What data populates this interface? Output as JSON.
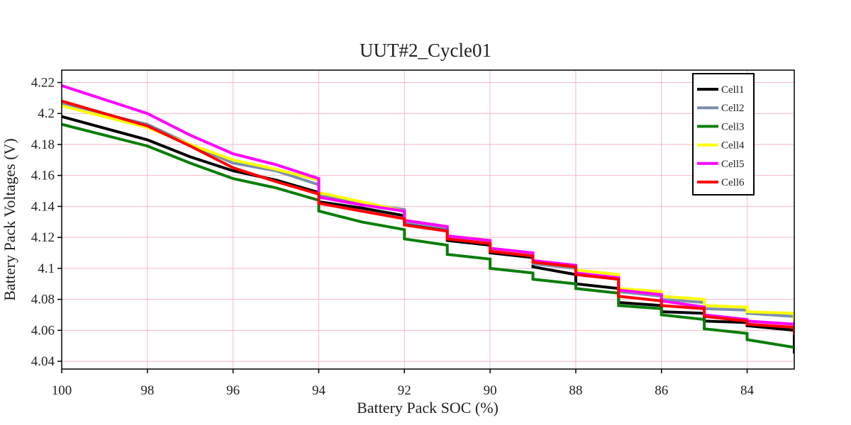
{
  "chart_data": {
    "type": "line",
    "title": "UUT#2_Cycle01",
    "xlabel": "Battery Pack SOC (%)",
    "ylabel": "Battery Pack Voltages (V)",
    "xlim": [
      100,
      82.9
    ],
    "ylim": [
      4.035,
      4.228
    ],
    "x_reversed": true,
    "x_ticks": [
      100,
      98,
      96,
      94,
      92,
      90,
      88,
      86,
      84
    ],
    "x_tick_labels": [
      "100",
      "98",
      "96",
      "94",
      "92",
      "90",
      "88",
      "86",
      "84"
    ],
    "y_ticks": [
      4.04,
      4.06,
      4.08,
      4.1,
      4.12,
      4.14,
      4.16,
      4.18,
      4.2,
      4.22
    ],
    "y_tick_labels": [
      "4.04",
      "4.06",
      "4.08",
      "4.1",
      "4.12",
      "4.14",
      "4.16",
      "4.18",
      "4.2",
      "4.22"
    ],
    "grid": true,
    "grid_color": "#f4b6c6",
    "legend_position": "top-right",
    "series": [
      {
        "name": "Cell1",
        "color": "#000000",
        "x": [
          100,
          98,
          97,
          96,
          95,
          94,
          94,
          93,
          92,
          92,
          91,
          91,
          90,
          90,
          89,
          89,
          88,
          88,
          87,
          87,
          86,
          86,
          85,
          85,
          84,
          84,
          82.9,
          82.9
        ],
        "y": [
          4.198,
          4.183,
          4.172,
          4.163,
          4.157,
          4.149,
          4.143,
          4.139,
          4.134,
          4.129,
          4.125,
          4.118,
          4.115,
          4.11,
          4.107,
          4.101,
          4.096,
          4.09,
          4.087,
          4.078,
          4.076,
          4.072,
          4.071,
          4.066,
          4.065,
          4.063,
          4.06,
          4.045
        ]
      },
      {
        "name": "Cell2",
        "color": "#7a90b0",
        "x": [
          100,
          98,
          97,
          96,
          95,
          94,
          94,
          93,
          92,
          92,
          91,
          91,
          90,
          90,
          89,
          89,
          88,
          88,
          87,
          87,
          86,
          86,
          85,
          85,
          84,
          84,
          82.9,
          82.9
        ],
        "y": [
          4.206,
          4.193,
          4.18,
          4.168,
          4.163,
          4.154,
          4.147,
          4.142,
          4.138,
          4.13,
          4.126,
          4.12,
          4.117,
          4.111,
          4.109,
          4.103,
          4.1,
          4.097,
          4.093,
          4.085,
          4.082,
          4.08,
          4.078,
          4.074,
          4.073,
          4.071,
          4.069,
          4.06
        ]
      },
      {
        "name": "Cell3",
        "color": "#0b7d0b",
        "x": [
          100,
          98,
          97,
          96,
          95,
          94,
          94,
          93,
          92,
          92,
          91,
          91,
          90,
          90,
          89,
          89,
          88,
          88,
          87,
          87,
          86,
          86,
          85,
          85,
          84,
          84,
          82.9
        ],
        "y": [
          4.193,
          4.179,
          4.168,
          4.158,
          4.152,
          4.144,
          4.137,
          4.13,
          4.125,
          4.119,
          4.115,
          4.109,
          4.106,
          4.1,
          4.097,
          4.093,
          4.09,
          4.087,
          4.084,
          4.076,
          4.074,
          4.07,
          4.067,
          4.061,
          4.058,
          4.054,
          4.049
        ]
      },
      {
        "name": "Cell4",
        "color": "#ffff00",
        "x": [
          100,
          98,
          97,
          96,
          95,
          94,
          94,
          93,
          92,
          92,
          91,
          91,
          90,
          90,
          89,
          89,
          88,
          88,
          87,
          87,
          86,
          86,
          85,
          85,
          84,
          84,
          82.9,
          82.9
        ],
        "y": [
          4.205,
          4.191,
          4.18,
          4.17,
          4.164,
          4.157,
          4.149,
          4.143,
          4.137,
          4.131,
          4.127,
          4.121,
          4.118,
          4.112,
          4.11,
          4.104,
          4.101,
          4.099,
          4.096,
          4.087,
          4.085,
          4.082,
          4.08,
          4.076,
          4.075,
          4.072,
          4.071,
          4.066
        ]
      },
      {
        "name": "Cell5",
        "color": "#ff00ff",
        "x": [
          100,
          98,
          97,
          96,
          95,
          94,
          94,
          93,
          92,
          92,
          91,
          91,
          90,
          90,
          89,
          89,
          88,
          88,
          87,
          87,
          86,
          86,
          85,
          85,
          84,
          84,
          82.9,
          82.9
        ],
        "y": [
          4.218,
          4.2,
          4.186,
          4.174,
          4.167,
          4.158,
          4.146,
          4.141,
          4.137,
          4.131,
          4.127,
          4.121,
          4.118,
          4.113,
          4.11,
          4.105,
          4.102,
          4.097,
          4.094,
          4.086,
          4.083,
          4.079,
          4.075,
          4.07,
          4.067,
          4.066,
          4.064,
          4.06
        ]
      },
      {
        "name": "Cell6",
        "color": "#ff0000",
        "x": [
          100,
          98,
          97,
          96,
          95,
          94,
          94,
          93,
          92,
          92,
          91,
          91,
          90,
          90,
          89,
          89,
          88,
          88,
          87,
          87,
          86,
          86,
          85,
          85,
          84,
          84,
          82.9,
          82.9
        ],
        "y": [
          4.208,
          4.192,
          4.179,
          4.165,
          4.156,
          4.148,
          4.142,
          4.137,
          4.132,
          4.128,
          4.124,
          4.119,
          4.116,
          4.111,
          4.108,
          4.104,
          4.101,
          4.096,
          4.093,
          4.082,
          4.079,
          4.076,
          4.074,
          4.069,
          4.066,
          4.064,
          4.062,
          4.057
        ]
      }
    ]
  }
}
